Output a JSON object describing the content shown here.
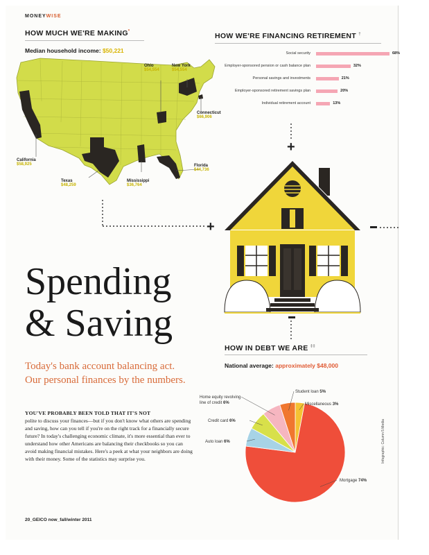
{
  "brand": {
    "part1": "MONEY",
    "part2": "WISE"
  },
  "income": {
    "heading": "HOW MUCH WE'RE MAKING",
    "heading_mark": "*",
    "median_label": "Median household income:",
    "median_value": "$50,221",
    "states": [
      {
        "name": "Ohio",
        "value": "$54,554"
      },
      {
        "name": "New York",
        "value": "$54,554"
      },
      {
        "name": "Connecticut",
        "value": "$66,906"
      },
      {
        "name": "California",
        "value": "$58,925"
      },
      {
        "name": "Texas",
        "value": "$48,259"
      },
      {
        "name": "Mississippi",
        "value": "$36,764"
      },
      {
        "name": "Florida",
        "value": "$44,736"
      }
    ]
  },
  "retirement": {
    "heading": "HOW WE'RE FINANCING RETIREMENT",
    "heading_mark": "†",
    "bar_color": "#f5a6b4",
    "items": [
      {
        "label": "Social security",
        "pct": 68,
        "pct_label": "68%"
      },
      {
        "label": "Employer-sponsored pension or cash balance plan",
        "pct": 32,
        "pct_label": "32%"
      },
      {
        "label": "Personal savings and investments",
        "pct": 21,
        "pct_label": "21%"
      },
      {
        "label": "Employer-sponsored retirement savings plan",
        "pct": 20,
        "pct_label": "20%"
      },
      {
        "label": "Individual retirement account",
        "pct": 13,
        "pct_label": "13%"
      }
    ]
  },
  "article": {
    "title_line1": "Spending",
    "title_line2": "& Saving",
    "subtitle_line1": "Today's bank account balancing act.",
    "subtitle_line2": "Our personal finances by the numbers.",
    "lead": "YOU'VE PROBABLY BEEN TOLD THAT IT'S NOT",
    "body": "polite to discuss your finances—but if you don't know what others are spending and saving, how can you tell if you're on the right track for a financially secure future? In today's challenging economic climate, it's more essential than ever to understand how other Americans are balancing their checkbooks so you can avoid making financial mistakes. Here's a peek at what your neighbors are doing with their money. Some of the statistics may surprise you."
  },
  "debt": {
    "heading": "HOW IN DEBT WE ARE",
    "heading_mark": "‡‡",
    "avg_label": "National average:",
    "avg_value": "approximately $48,000",
    "chart_data": {
      "type": "pie",
      "slices": [
        {
          "label": "Mortgage",
          "value": 74,
          "value_label": "74%",
          "color": "#ef4e3a"
        },
        {
          "label": "Auto loan",
          "value": 6,
          "value_label": "6%",
          "color": "#a7d3e6"
        },
        {
          "label": "Credit card",
          "value": 6,
          "value_label": "6%",
          "color": "#d8e04a"
        },
        {
          "label": "Home equity revolving line of credit",
          "value": 6,
          "value_label": "6%",
          "color": "#f6b6c0"
        },
        {
          "label": "Student loan",
          "value": 5,
          "value_label": "5%",
          "color": "#f0772f"
        },
        {
          "label": "Miscellaneous",
          "value": 3,
          "value_label": "3%",
          "color": "#f5c233"
        }
      ]
    }
  },
  "footer": "20_GEICO now_fall/winter 2011",
  "credit": "Infographic: Column 5 Media"
}
